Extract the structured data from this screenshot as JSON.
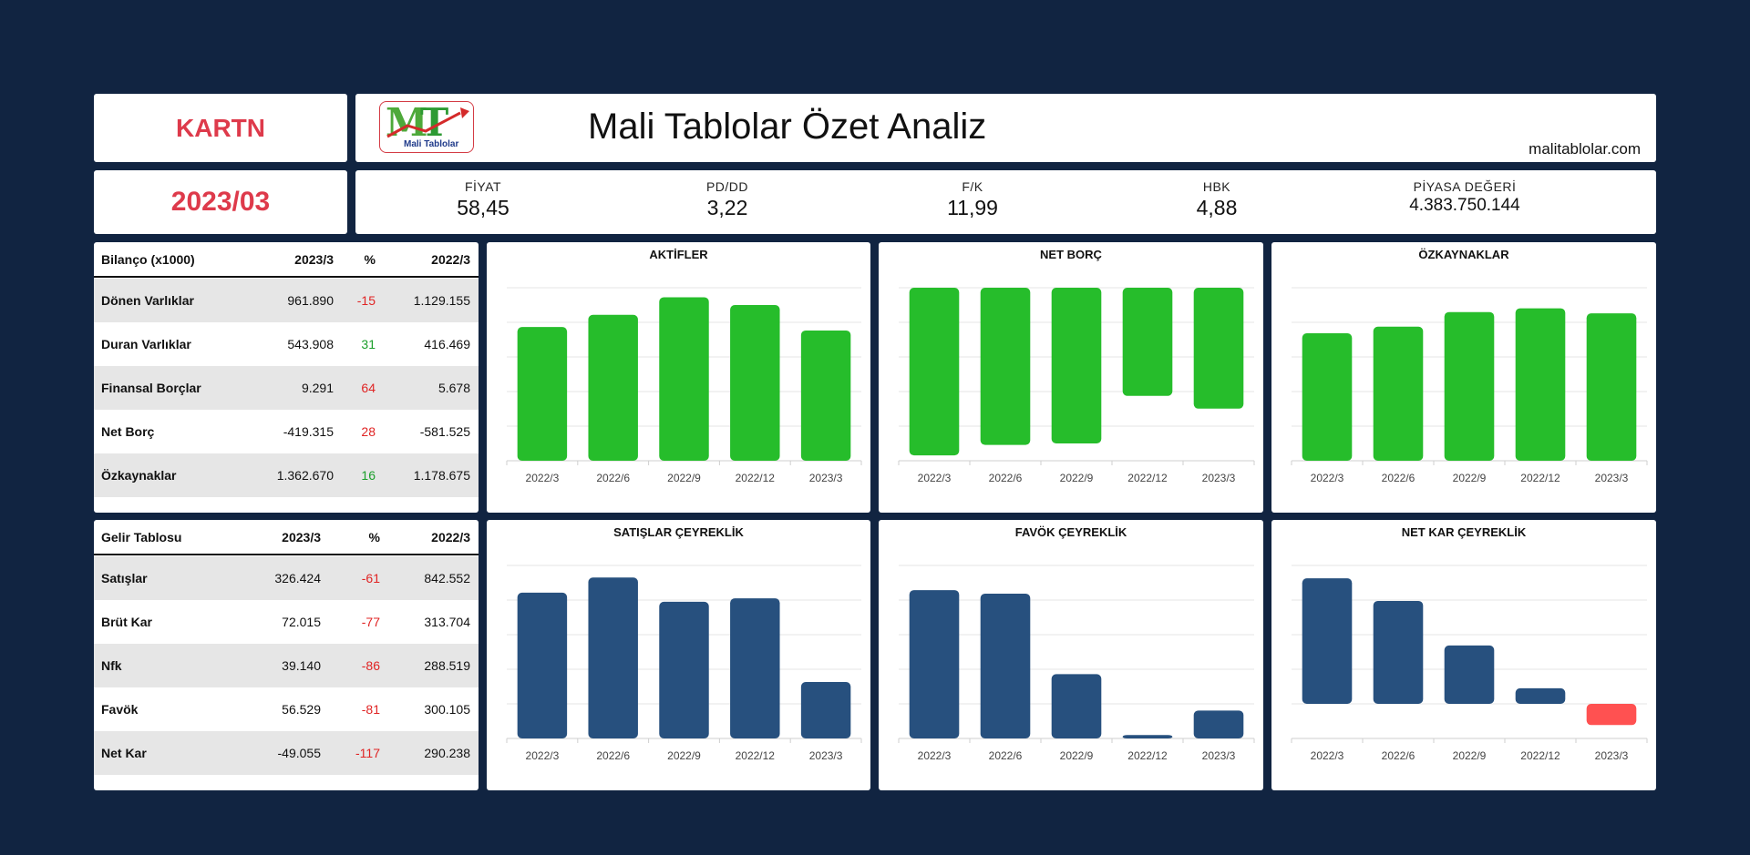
{
  "ticker": "KARTN",
  "period": "2023/03",
  "header": {
    "logo_text": "MT",
    "logo_sub": "Mali Tablolar",
    "title": "Mali Tablolar Özet Analiz",
    "site": "malitablolar.com"
  },
  "metrics": [
    {
      "label": "FİYAT",
      "value": "58,45"
    },
    {
      "label": "PD/DD",
      "value": "3,22"
    },
    {
      "label": "F/K",
      "value": "11,99"
    },
    {
      "label": "HBK",
      "value": "4,88"
    },
    {
      "label": "PİYASA DEĞERİ",
      "value": "4.383.750.144"
    }
  ],
  "balance_table": {
    "headers": [
      "Bilanço (x1000)",
      "2023/3",
      "%",
      "2022/3"
    ],
    "rows": [
      {
        "name": "Dönen Varlıklar",
        "a": "961.890",
        "p": "-15",
        "b": "1.129.155"
      },
      {
        "name": "Duran Varlıklar",
        "a": "543.908",
        "p": "31",
        "b": "416.469"
      },
      {
        "name": "Finansal Borçlar",
        "a": "9.291",
        "p": "64",
        "b": "5.678"
      },
      {
        "name": "Net Borç",
        "a": "-419.315",
        "p": "28",
        "b": "-581.525"
      },
      {
        "name": "Özkaynaklar",
        "a": "1.362.670",
        "p": "16",
        "b": "1.178.675"
      }
    ]
  },
  "income_table": {
    "headers": [
      "Gelir Tablosu",
      "2023/3",
      "%",
      "2022/3"
    ],
    "rows": [
      {
        "name": "Satışlar",
        "a": "326.424",
        "p": "-61",
        "b": "842.552"
      },
      {
        "name": "Brüt Kar",
        "a": "72.015",
        "p": "-77",
        "b": "313.704"
      },
      {
        "name": "Nfk",
        "a": "39.140",
        "p": "-86",
        "b": "288.519"
      },
      {
        "name": "Favök",
        "a": "56.529",
        "p": "-81",
        "b": "300.105"
      },
      {
        "name": "Net Kar",
        "a": "-49.055",
        "p": "-117",
        "b": "290.238"
      }
    ]
  },
  "colors": {
    "background": "#112441",
    "accent_red": "#de3a4b",
    "positive": "#1a9e2a",
    "negative": "#e02424",
    "bar_green": "#26bd2b",
    "bar_blue": "#27507e",
    "bar_red": "#ff5151"
  },
  "chart_data": [
    {
      "id": "aktifler",
      "type": "bar",
      "title": "AKTİFLER",
      "categories": [
        "2022/3",
        "2022/6",
        "2022/9",
        "2022/12",
        "2023/3"
      ],
      "values": [
        1545624,
        1687000,
        1890000,
        1800000,
        1505798
      ],
      "ylim": [
        0,
        2000000
      ],
      "color": "#26bd2b",
      "grid": true
    },
    {
      "id": "net_borc",
      "type": "bar",
      "title": "NET BORÇ",
      "categories": [
        "2022/3",
        "2022/6",
        "2022/9",
        "2022/12",
        "2023/3"
      ],
      "values": [
        -581525,
        -545000,
        -540000,
        -375000,
        -419315
      ],
      "ylim": [
        -600000,
        0
      ],
      "color": "#26bd2b",
      "grid": true
    },
    {
      "id": "ozkaynaklar",
      "type": "bar",
      "title": "ÖZKAYNAKLAR",
      "categories": [
        "2022/3",
        "2022/6",
        "2022/9",
        "2022/12",
        "2023/3"
      ],
      "values": [
        1178675,
        1240000,
        1375000,
        1410000,
        1362670
      ],
      "ylim": [
        0,
        1600000
      ],
      "color": "#26bd2b",
      "grid": true
    },
    {
      "id": "satislar",
      "type": "bar",
      "title": "SATIŞLAR ÇEYREKLİK",
      "categories": [
        "2022/3",
        "2022/6",
        "2022/9",
        "2022/12",
        "2023/3"
      ],
      "values": [
        842552,
        930000,
        790000,
        810000,
        326424
      ],
      "ylim": [
        0,
        1000000
      ],
      "color": "#27507e",
      "grid": true
    },
    {
      "id": "favok",
      "type": "bar",
      "title": "FAVÖK ÇEYREKLİK",
      "categories": [
        "2022/3",
        "2022/6",
        "2022/9",
        "2022/12",
        "2023/3"
      ],
      "values": [
        300105,
        293000,
        130000,
        7000,
        56529
      ],
      "ylim": [
        0,
        350000
      ],
      "color": "#27507e",
      "grid": true
    },
    {
      "id": "net_kar",
      "type": "bar",
      "title": "NET KAR ÇEYREKLİK",
      "categories": [
        "2022/3",
        "2022/6",
        "2022/9",
        "2022/12",
        "2023/3"
      ],
      "values": [
        290238,
        238000,
        135000,
        36000,
        -49055
      ],
      "ylim": [
        -80000,
        320000
      ],
      "color": "#27507e",
      "negative_color": "#ff5151",
      "grid": true
    }
  ]
}
